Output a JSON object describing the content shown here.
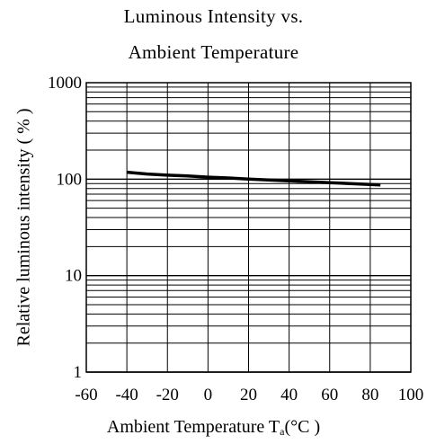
{
  "chart_data": {
    "type": "line",
    "title_line1": "Luminous Intensity vs.",
    "title_line2": "Ambient Temperature",
    "ylabel": "Relative luminous intensity ( % )",
    "xlabel_text": "Ambient Temperature T",
    "xlabel_sub": "a",
    "xlabel_unit": "(°C )",
    "y_scale": "log",
    "ylim": [
      1,
      1000
    ],
    "xlim": [
      -60,
      100
    ],
    "x_ticks": [
      -60,
      -40,
      -20,
      0,
      20,
      40,
      60,
      80,
      100
    ],
    "x_tick_labels": [
      "-60",
      "-40",
      "-20",
      "0",
      "20",
      "40",
      "60",
      "80",
      "100"
    ],
    "y_ticks": [
      1,
      10,
      100,
      1000
    ],
    "y_tick_labels": [
      "1",
      "10",
      "100",
      "1000"
    ],
    "grid": true,
    "series": [
      {
        "x": [
          -40,
          -30,
          -20,
          -10,
          0,
          10,
          20,
          30,
          40,
          50,
          60,
          70,
          80,
          85
        ],
        "y": [
          118,
          113,
          110,
          108,
          105,
          103,
          100,
          98,
          96,
          94,
          92,
          90,
          88,
          87
        ]
      }
    ]
  }
}
